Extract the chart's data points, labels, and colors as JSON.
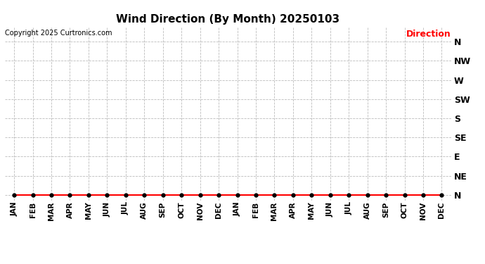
{
  "title": "Wind Direction (By Month) 20250103",
  "copyright": "Copyright 2025 Curtronics.com",
  "legend_label": "Direction",
  "legend_color": "#ff0000",
  "y_labels": [
    "N",
    "NE",
    "E",
    "SE",
    "S",
    "SW",
    "W",
    "NW",
    "N"
  ],
  "y_values": [
    0,
    1,
    2,
    3,
    4,
    5,
    6,
    7,
    8
  ],
  "x_labels": [
    "JAN",
    "FEB",
    "MAR",
    "APR",
    "MAY",
    "JUN",
    "JUL",
    "AUG",
    "SEP",
    "OCT",
    "NOV",
    "DEC",
    "JAN",
    "FEB",
    "MAR",
    "APR",
    "MAY",
    "JUN",
    "JUL",
    "AUG",
    "SEP",
    "OCT",
    "NOV",
    "DEC"
  ],
  "data_x": [
    0,
    1,
    2,
    3,
    4,
    5,
    6,
    7,
    8,
    9,
    10,
    11,
    12,
    13,
    14,
    15,
    16,
    17,
    18,
    19,
    20,
    21,
    22,
    23
  ],
  "data_y": [
    0,
    0,
    0,
    0,
    0,
    0,
    0,
    0,
    0,
    0,
    0,
    0,
    0,
    0,
    0,
    0,
    0,
    0,
    0,
    0,
    0,
    0,
    0,
    0
  ],
  "line_color": "#ff0000",
  "marker_color": "#000000",
  "background_color": "#ffffff",
  "grid_color": "#bbbbbb",
  "title_fontsize": 11,
  "copyright_fontsize": 7,
  "axis_label_fontsize": 7.5,
  "ylabel_fontsize": 9
}
